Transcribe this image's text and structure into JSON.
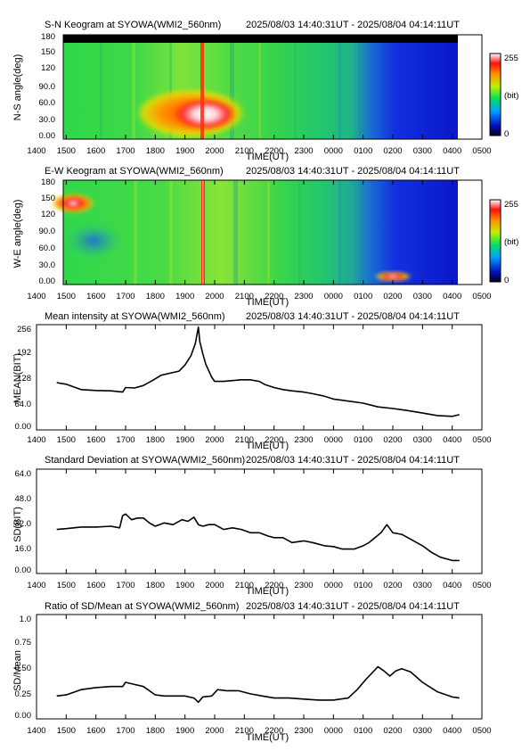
{
  "panels": {
    "sn": {
      "title": "S-N Keogram at SYOWA(WMI2_560nm)",
      "period": "2025/08/03 14:40:31UT - 2025/08/04 04:14:11UT",
      "ylabel": "N-S angle(deg)",
      "xlabel": "TIME(UT)",
      "yticks": [
        "0.00",
        "30.0",
        "60.0",
        "90.0",
        "120",
        "150",
        "180"
      ],
      "colorbar": {
        "max": "255",
        "unit": "(bit)",
        "min": "0"
      }
    },
    "ew": {
      "title": "E-W Keogram at SYOWA(WMI2_560nm)",
      "period": "2025/08/03 14:40:31UT - 2025/08/04 04:14:11UT",
      "ylabel": "W-E angle(deg)",
      "xlabel": "TIME(UT)",
      "yticks": [
        "0.00",
        "30.0",
        "60.0",
        "90.0",
        "120",
        "150",
        "180"
      ],
      "colorbar": {
        "max": "255",
        "unit": "(bit)",
        "min": "0"
      }
    },
    "mean": {
      "title": "Mean intensity at SYOWA(WMI2_560nm)",
      "period": "2025/08/03 14:40:31UT - 2025/08/04 04:14:11UT",
      "ylabel": "MEAN(BIT)",
      "xlabel": "TIME(UT)",
      "yticks": [
        "0.00",
        "64.0",
        "128",
        "192",
        "256"
      ]
    },
    "sd": {
      "title": "Standard Deviation at SYOWA(WMI2_560nm)",
      "period": "2025/08/03 14:40:31UT - 2025/08/04 04:14:11UT",
      "ylabel": "SD(BIT)",
      "xlabel": "TIME(UT)",
      "yticks": [
        "0.00",
        "16.0",
        "32.0",
        "48.0",
        "64.0"
      ]
    },
    "ratio": {
      "title": "Ratio of SD/Mean at SYOWA(WMI2_560nm)",
      "period": "2025/08/03 14:40:31UT - 2025/08/04 04:14:11UT",
      "ylabel": "SD/Mean",
      "xlabel": "TIME(UT)",
      "yticks": [
        "0.00",
        "0.25",
        "0.50",
        "0.75",
        "1.0"
      ]
    }
  },
  "xticks": [
    "1400",
    "1500",
    "1600",
    "1700",
    "1800",
    "1900",
    "2000",
    "2100",
    "2200",
    "2300",
    "0000",
    "0100",
    "0200",
    "0300",
    "0400",
    "0500"
  ],
  "colors": {
    "keogram_low": "#0a14c8",
    "keogram_mid": "#22d040",
    "keogram_high": "#ff2000",
    "saturated": "#ffffff",
    "trace": "#000000"
  },
  "chart_data": [
    {
      "type": "heatmap",
      "title": "S-N Keogram at SYOWA(WMI2_560nm)",
      "xlabel": "TIME(UT)",
      "ylabel": "N-S angle(deg)",
      "xlim": [
        14.0,
        29.0
      ],
      "ylim": [
        0,
        180
      ],
      "zlim": [
        0,
        255
      ],
      "data_span_ut": [
        14.675,
        28.236
      ],
      "features": [
        {
          "time_ut": [
            17.7,
            20.9
          ],
          "angle": [
            20,
            70
          ],
          "level": "high (orange/red)"
        },
        {
          "time_ut": [
            19.3,
            19.6
          ],
          "angle": [
            0,
            180
          ],
          "level": "saturated arc"
        },
        {
          "time_ut": [
            25.3,
            28.24
          ],
          "angle": [
            0,
            180
          ],
          "level": "low (blue)"
        }
      ]
    },
    {
      "type": "heatmap",
      "title": "E-W Keogram at SYOWA(WMI2_560nm)",
      "xlabel": "TIME(UT)",
      "ylabel": "W-E angle(deg)",
      "xlim": [
        14.0,
        29.0
      ],
      "ylim": [
        0,
        180
      ],
      "zlim": [
        0,
        255
      ],
      "data_span_ut": [
        14.675,
        28.236
      ],
      "features": [
        {
          "time_ut": [
            14.68,
            15.5
          ],
          "angle": [
            120,
            155
          ],
          "level": "high (red)"
        },
        {
          "time_ut": [
            19.4,
            19.6
          ],
          "angle": [
            0,
            180
          ],
          "level": "saturated arc"
        },
        {
          "time_ut": [
            25.9,
            26.8
          ],
          "angle": [
            2,
            15
          ],
          "level": "high (red)"
        },
        {
          "time_ut": [
            25.3,
            28.24
          ],
          "angle": [
            0,
            180
          ],
          "level": "low (blue)"
        }
      ]
    },
    {
      "type": "line",
      "title": "Mean intensity at SYOWA(WMI2_560nm)",
      "xlabel": "TIME(UT)",
      "ylabel": "MEAN(BIT)",
      "xlim": [
        14.0,
        29.0
      ],
      "ylim": [
        0,
        256
      ],
      "x": [
        14.68,
        15.0,
        15.5,
        16.0,
        16.5,
        16.9,
        17.0,
        17.3,
        17.6,
        17.9,
        18.2,
        18.5,
        18.8,
        19.0,
        19.2,
        19.35,
        19.45,
        19.5,
        19.6,
        19.7,
        19.9,
        20.0,
        20.3,
        20.6,
        20.9,
        21.2,
        21.5,
        21.7,
        22.0,
        22.3,
        22.6,
        23.0,
        23.3,
        23.7,
        24.0,
        24.5,
        25.0,
        25.5,
        26.0,
        26.5,
        27.0,
        27.5,
        28.0,
        28.24
      ],
      "y": [
        115,
        111,
        98,
        96,
        95,
        92,
        103,
        102,
        108,
        120,
        133,
        138,
        143,
        158,
        180,
        210,
        250,
        215,
        185,
        160,
        128,
        118,
        118,
        120,
        122,
        122,
        118,
        110,
        103,
        98,
        95,
        92,
        88,
        82,
        75,
        70,
        65,
        56,
        52,
        47,
        41,
        35,
        33,
        37
      ]
    },
    {
      "type": "line",
      "title": "Standard Deviation at SYOWA(WMI2_560nm)",
      "xlabel": "TIME(UT)",
      "ylabel": "SD(BIT)",
      "xlim": [
        14.0,
        29.0
      ],
      "ylim": [
        0,
        64
      ],
      "x": [
        14.68,
        15.0,
        15.5,
        16.0,
        16.5,
        16.8,
        16.9,
        17.0,
        17.2,
        17.4,
        17.6,
        17.8,
        18.0,
        18.3,
        18.6,
        18.9,
        19.1,
        19.3,
        19.45,
        19.6,
        19.8,
        20.0,
        20.3,
        20.6,
        20.9,
        21.2,
        21.5,
        21.8,
        22.0,
        22.3,
        22.6,
        23.0,
        23.3,
        23.7,
        24.0,
        24.3,
        24.7,
        25.0,
        25.2,
        25.4,
        25.6,
        25.8,
        26.0,
        26.3,
        26.6,
        27.0,
        27.3,
        27.6,
        28.0,
        28.24
      ],
      "y": [
        27,
        27.5,
        28.5,
        28.5,
        29,
        28,
        35.5,
        36.5,
        33,
        34,
        34,
        31,
        29,
        31,
        30,
        33,
        32,
        34.5,
        30,
        29,
        30,
        30,
        27,
        28,
        27,
        25,
        25,
        23,
        22,
        22,
        19,
        20,
        19,
        17,
        16.5,
        15,
        15,
        17,
        19,
        22,
        25,
        30,
        25,
        24,
        21,
        17,
        13,
        10,
        8,
        8
      ]
    },
    {
      "type": "line",
      "title": "Ratio of SD/Mean at SYOWA(WMI2_560nm)",
      "xlabel": "TIME(UT)",
      "ylabel": "SD/Mean",
      "xlim": [
        14.0,
        29.0
      ],
      "ylim": [
        0,
        1.0
      ],
      "x": [
        14.68,
        15.0,
        15.5,
        16.0,
        16.5,
        16.9,
        17.0,
        17.3,
        17.6,
        18.0,
        18.3,
        18.7,
        19.0,
        19.3,
        19.45,
        19.6,
        19.9,
        20.1,
        20.4,
        20.8,
        21.2,
        21.6,
        22.0,
        22.5,
        23.0,
        23.5,
        24.0,
        24.5,
        24.8,
        25.1,
        25.3,
        25.5,
        25.7,
        25.9,
        26.1,
        26.3,
        26.6,
        27.0,
        27.5,
        28.0,
        28.24
      ],
      "y": [
        0.22,
        0.23,
        0.28,
        0.3,
        0.31,
        0.31,
        0.35,
        0.33,
        0.31,
        0.23,
        0.22,
        0.22,
        0.22,
        0.2,
        0.16,
        0.21,
        0.22,
        0.28,
        0.27,
        0.27,
        0.24,
        0.22,
        0.2,
        0.2,
        0.19,
        0.18,
        0.18,
        0.2,
        0.28,
        0.38,
        0.44,
        0.5,
        0.46,
        0.41,
        0.46,
        0.48,
        0.45,
        0.35,
        0.26,
        0.21,
        0.2
      ]
    }
  ]
}
